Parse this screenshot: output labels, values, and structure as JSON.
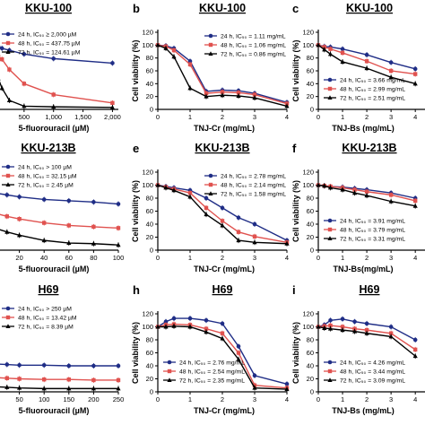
{
  "chart_data": [
    {
      "panel": "a",
      "type": "line",
      "title": "KKU-100",
      "xlabel": "5-fluorouracil (µM)",
      "ylabel": "",
      "xlim": [
        0,
        2100
      ],
      "ylim": [
        0,
        120
      ],
      "xticks": [
        500,
        1000,
        1500,
        2000
      ],
      "xtick_labels": [
        "500",
        "1,000",
        "1,500",
        "2,000"
      ],
      "yticks": [],
      "ytick_labels": [],
      "legend_position": "top-left",
      "series": [
        {
          "name": "24 h, IC₅₀ ≥ 2,000 µM",
          "color": "#1f2d86",
          "marker": "circle",
          "x": [
            0,
            31,
            62,
            125,
            250,
            500,
            1000,
            2000
          ],
          "y": [
            100,
            99,
            98,
            95,
            92,
            86,
            79,
            72
          ]
        },
        {
          "name": "48 h, IC₅₀ = 437.75 µM",
          "color": "#e0524f",
          "marker": "square",
          "x": [
            0,
            31,
            62,
            125,
            250,
            500,
            1000,
            2000
          ],
          "y": [
            100,
            90,
            82,
            78,
            62,
            40,
            23,
            10
          ]
        },
        {
          "name": "72 h, IC₅₀ = 124.61 µM",
          "color": "#000000",
          "marker": "triangle",
          "x": [
            0,
            31,
            62,
            125,
            250,
            500,
            1000,
            2000
          ],
          "y": [
            100,
            70,
            48,
            33,
            14,
            5,
            4,
            3
          ]
        }
      ]
    },
    {
      "panel": "b",
      "type": "line",
      "title": "KKU-100",
      "xlabel": "TNJ-Cr (mg/mL)",
      "ylabel": "Cell viability (%)",
      "xlim": [
        0,
        4
      ],
      "ylim": [
        0,
        120
      ],
      "xticks": [
        0,
        1,
        2,
        3,
        4
      ],
      "xtick_labels": [
        "0",
        "1",
        "2",
        "3",
        "4"
      ],
      "yticks": [
        0,
        20,
        40,
        60,
        80,
        100,
        120
      ],
      "ytick_labels": [
        "0",
        "20",
        "40",
        "60",
        "80",
        "100",
        "120"
      ],
      "legend_position": "top-right",
      "series": [
        {
          "name": "24 h, IC₅₀ = 1.11 mg/mL",
          "color": "#1f2d86",
          "marker": "circle",
          "x": [
            0,
            0.25,
            0.5,
            1,
            1.5,
            2,
            2.5,
            3,
            4
          ],
          "y": [
            100,
            99,
            95,
            75,
            28,
            30,
            29,
            25,
            11
          ]
        },
        {
          "name": "48 h, IC₅₀ = 1.06 mg/mL",
          "color": "#e0524f",
          "marker": "square",
          "x": [
            0,
            0.25,
            0.5,
            1,
            1.5,
            2,
            2.5,
            3,
            4
          ],
          "y": [
            100,
            98,
            92,
            70,
            25,
            27,
            26,
            23,
            9
          ]
        },
        {
          "name": "72 h, IC₅₀ = 0.86 mg/mL",
          "color": "#000000",
          "marker": "triangle",
          "x": [
            0,
            0.25,
            0.5,
            1,
            1.5,
            2,
            2.5,
            3,
            4
          ],
          "y": [
            100,
            95,
            82,
            33,
            20,
            22,
            21,
            18,
            5
          ]
        }
      ]
    },
    {
      "panel": "c",
      "type": "line",
      "title": "KKU-100",
      "xlabel": "TNJ-Bs (mg/mL)",
      "ylabel": "Cell viability (%)",
      "xlim": [
        0,
        4.4
      ],
      "ylim": [
        0,
        120
      ],
      "xticks": [
        0,
        1,
        2,
        3,
        4
      ],
      "xtick_labels": [
        "0",
        "1",
        "2",
        "3",
        "4"
      ],
      "yticks": [
        0,
        20,
        40,
        60,
        80,
        100,
        120
      ],
      "ytick_labels": [
        "0",
        "20",
        "40",
        "60",
        "80",
        "100",
        "120"
      ],
      "legend_position": "bottom-left",
      "series": [
        {
          "name": "24 h, IC₅₀ = 3.66 mg/mL",
          "color": "#1f2d86",
          "marker": "circle",
          "x": [
            0,
            0.25,
            0.5,
            1,
            2,
            3,
            4
          ],
          "y": [
            100,
            98,
            97,
            94,
            85,
            73,
            63
          ]
        },
        {
          "name": "48 h, IC₅₀ = 2.99 mg/mL",
          "color": "#e0524f",
          "marker": "square",
          "x": [
            0,
            0.25,
            0.5,
            1,
            2,
            3,
            4
          ],
          "y": [
            100,
            97,
            94,
            88,
            75,
            60,
            55
          ]
        },
        {
          "name": "72 h, IC₅₀ = 2.51 mg/mL",
          "color": "#000000",
          "marker": "triangle",
          "x": [
            0,
            0.25,
            0.5,
            1,
            2,
            3,
            4
          ],
          "y": [
            100,
            93,
            86,
            74,
            64,
            50,
            40
          ]
        }
      ]
    },
    {
      "panel": "d",
      "type": "line",
      "title": "KKU-213B",
      "xlabel": "5-fluorouracil (µM)",
      "ylabel": "",
      "xlim": [
        0,
        100
      ],
      "ylim": [
        0,
        120
      ],
      "xticks": [
        20,
        40,
        60,
        80,
        100
      ],
      "xtick_labels": [
        "20",
        "40",
        "60",
        "80",
        "100"
      ],
      "yticks": [],
      "ytick_labels": [],
      "legend_position": "top-right",
      "series": [
        {
          "name": "24 h, IC₅₀ > 100 µM",
          "color": "#1f2d86",
          "marker": "circle",
          "x": [
            0,
            10,
            20,
            40,
            60,
            80,
            100
          ],
          "y": [
            88,
            85,
            82,
            78,
            76,
            74,
            71
          ]
        },
        {
          "name": "48 h, IC₅₀ = 32.15 µM",
          "color": "#e0524f",
          "marker": "square",
          "x": [
            0,
            10,
            20,
            40,
            60,
            80,
            100
          ],
          "y": [
            57,
            52,
            48,
            42,
            38,
            36,
            34
          ]
        },
        {
          "name": "72 h, IC₅₀ = 2.45 µM",
          "color": "#000000",
          "marker": "triangle",
          "x": [
            0,
            10,
            20,
            40,
            60,
            80,
            100
          ],
          "y": [
            34,
            28,
            23,
            15,
            11,
            10,
            8
          ]
        }
      ]
    },
    {
      "panel": "e",
      "type": "line",
      "title": "KKU-213B",
      "xlabel": "TNJ-Cr (mg/mL)",
      "ylabel": "Cell viability (%)",
      "xlim": [
        0,
        4
      ],
      "ylim": [
        0,
        120
      ],
      "xticks": [
        0,
        1,
        2,
        3,
        4
      ],
      "xtick_labels": [
        "0",
        "1",
        "2",
        "3",
        "4"
      ],
      "yticks": [
        0,
        20,
        40,
        60,
        80,
        100,
        120
      ],
      "ytick_labels": [
        "0",
        "20",
        "40",
        "60",
        "80",
        "100",
        "120"
      ],
      "legend_position": "top-right",
      "series": [
        {
          "name": "24 h, IC₅₀ = 2.78 mg/mL",
          "color": "#1f2d86",
          "marker": "circle",
          "x": [
            0,
            0.25,
            0.5,
            1,
            1.5,
            2,
            2.5,
            3,
            4
          ],
          "y": [
            100,
            98,
            96,
            92,
            80,
            65,
            50,
            40,
            15
          ]
        },
        {
          "name": "48 h, IC₅₀ = 2.14 mg/mL",
          "color": "#e0524f",
          "marker": "square",
          "x": [
            0,
            0.25,
            0.5,
            1,
            1.5,
            2,
            2.5,
            3,
            4
          ],
          "y": [
            100,
            97,
            94,
            88,
            65,
            45,
            28,
            21,
            12
          ]
        },
        {
          "name": "72 h, IC₅₀ = 1.58 mg/mL",
          "color": "#000000",
          "marker": "triangle",
          "x": [
            0,
            0.25,
            0.5,
            1,
            1.5,
            2,
            2.5,
            3,
            4
          ],
          "y": [
            100,
            96,
            92,
            82,
            55,
            38,
            15,
            12,
            10
          ]
        }
      ]
    },
    {
      "panel": "f",
      "type": "line",
      "title": "KKU-213B",
      "xlabel": "TNJ-Bs(mg/mL)",
      "ylabel": "Cell viability (%)",
      "xlim": [
        0,
        4.4
      ],
      "ylim": [
        0,
        120
      ],
      "xticks": [
        0,
        1,
        2,
        3,
        4
      ],
      "xtick_labels": [
        "0",
        "1",
        "2",
        "3",
        "4"
      ],
      "yticks": [
        0,
        20,
        40,
        60,
        80,
        100,
        120
      ],
      "ytick_labels": [
        "0",
        "20",
        "40",
        "60",
        "80",
        "100",
        "120"
      ],
      "legend_position": "bottom-left",
      "series": [
        {
          "name": "24 h, IC₅₀ = 3.91 mg/mL",
          "color": "#1f2d86",
          "marker": "circle",
          "x": [
            0,
            0.25,
            0.5,
            1,
            1.5,
            2,
            3,
            4
          ],
          "y": [
            100,
            99,
            98,
            97,
            95,
            93,
            88,
            80
          ]
        },
        {
          "name": "48 h, IC₅₀ = 3.79 mg/mL",
          "color": "#e0524f",
          "marker": "square",
          "x": [
            0,
            0.25,
            0.5,
            1,
            1.5,
            2,
            3,
            4
          ],
          "y": [
            100,
            99,
            98,
            96,
            93,
            90,
            85,
            76
          ]
        },
        {
          "name": "72 h, IC₅₀ = 3.31 mg/mL",
          "color": "#000000",
          "marker": "triangle",
          "x": [
            0,
            0.25,
            0.5,
            1,
            1.5,
            2,
            3,
            4
          ],
          "y": [
            100,
            99,
            96,
            93,
            88,
            84,
            75,
            68
          ]
        }
      ]
    },
    {
      "panel": "g",
      "type": "line",
      "title": "H69",
      "xlabel": "5-fluorouracil (µM)",
      "ylabel": "",
      "xlim": [
        0,
        250
      ],
      "ylim": [
        0,
        120
      ],
      "xticks": [
        0,
        50,
        100,
        150,
        200,
        250
      ],
      "xtick_labels": [
        "0",
        "50",
        "100",
        "150",
        "200",
        "250"
      ],
      "yticks": [],
      "ytick_labels": [],
      "legend_position": "top-right",
      "series": [
        {
          "name": "24 h, IC₅₀ > 250 µM",
          "color": "#1f2d86",
          "marker": "circle",
          "x": [
            0,
            25,
            50,
            100,
            150,
            200,
            250
          ],
          "y": [
            43,
            42,
            41,
            41,
            40,
            40,
            40
          ]
        },
        {
          "name": "48 h, IC₅₀ = 13.42 µM",
          "color": "#e0524f",
          "marker": "square",
          "x": [
            0,
            25,
            50,
            100,
            150,
            200,
            250
          ],
          "y": [
            22,
            21,
            20,
            19,
            19,
            18,
            18
          ]
        },
        {
          "name": "72 h, IC₅₀ = 8.39 µM",
          "color": "#000000",
          "marker": "triangle",
          "x": [
            0,
            25,
            50,
            100,
            150,
            200,
            250
          ],
          "y": [
            8,
            7,
            6,
            5,
            5,
            5,
            5
          ]
        }
      ]
    },
    {
      "panel": "h",
      "type": "line",
      "title": "H69",
      "xlabel": "TNJ-Cr (mg/mL)",
      "ylabel": "Cell viability (%)",
      "xlim": [
        0,
        4
      ],
      "ylim": [
        0,
        120
      ],
      "xticks": [
        0,
        1,
        2,
        3,
        4
      ],
      "xtick_labels": [
        "0",
        "1",
        "2",
        "3",
        "4"
      ],
      "yticks": [
        0,
        20,
        40,
        60,
        80,
        100,
        120
      ],
      "ytick_labels": [
        "0",
        "20",
        "40",
        "60",
        "80",
        "100",
        "120"
      ],
      "legend_position": "bottom-left",
      "series": [
        {
          "name": "24 h, IC₅₀ = 2.76 mg/mL",
          "color": "#1f2d86",
          "marker": "circle",
          "x": [
            0,
            0.25,
            0.5,
            1,
            1.5,
            2,
            2.5,
            3,
            4
          ],
          "y": [
            100,
            108,
            113,
            113,
            110,
            105,
            70,
            25,
            12
          ]
        },
        {
          "name": "48 h, IC₅₀ = 2.54 mg/mL",
          "color": "#e0524f",
          "marker": "square",
          "x": [
            0,
            0.25,
            0.5,
            1,
            1.5,
            2,
            2.5,
            3,
            4
          ],
          "y": [
            100,
            103,
            104,
            103,
            97,
            90,
            60,
            10,
            6
          ]
        },
        {
          "name": "72 h, IC₅₀ = 2.35 mg/mL",
          "color": "#000000",
          "marker": "triangle",
          "x": [
            0,
            0.25,
            0.5,
            1,
            1.5,
            2,
            2.5,
            3,
            4
          ],
          "y": [
            100,
            100,
            101,
            100,
            92,
            82,
            50,
            6,
            4
          ]
        }
      ]
    },
    {
      "panel": "i",
      "type": "line",
      "title": "H69",
      "xlabel": "TNJ-Bs (mg/mL)",
      "ylabel": "Cell viability (%)",
      "xlim": [
        0,
        4.4
      ],
      "ylim": [
        0,
        120
      ],
      "xticks": [
        0,
        1,
        2,
        3,
        4
      ],
      "xtick_labels": [
        "0",
        "1",
        "2",
        "3",
        "4"
      ],
      "yticks": [
        0,
        20,
        40,
        60,
        80,
        100,
        120
      ],
      "ytick_labels": [
        "0",
        "20",
        "40",
        "60",
        "80",
        "100",
        "120"
      ],
      "legend_position": "bottom-left",
      "series": [
        {
          "name": "24 h, IC₅₀ = 4.26 mg/mL",
          "color": "#1f2d86",
          "marker": "circle",
          "x": [
            0,
            0.25,
            0.5,
            1,
            1.5,
            2,
            3,
            4
          ],
          "y": [
            100,
            103,
            110,
            112,
            108,
            105,
            100,
            80
          ]
        },
        {
          "name": "48 h, IC₅₀ = 3.44 mg/mL",
          "color": "#e0524f",
          "marker": "square",
          "x": [
            0,
            0.25,
            0.5,
            1,
            1.5,
            2,
            3,
            4
          ],
          "y": [
            100,
            101,
            102,
            100,
            97,
            95,
            90,
            65
          ]
        },
        {
          "name": "72 h, IC₅₀ = 3.09 mg/mL",
          "color": "#000000",
          "marker": "triangle",
          "x": [
            0,
            0.25,
            0.5,
            1,
            1.5,
            2,
            3,
            4
          ],
          "y": [
            100,
            98,
            97,
            95,
            93,
            90,
            85,
            55
          ]
        }
      ]
    }
  ]
}
